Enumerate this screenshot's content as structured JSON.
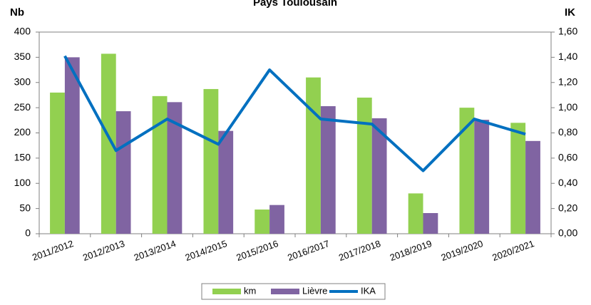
{
  "chart_data": {
    "type": "bar",
    "title": "Pays Toulousain",
    "ylabel": "Nb",
    "y2label": "IK",
    "categories": [
      "2011/2012",
      "2012/2013",
      "2013/2014",
      "2014/2015",
      "2015/2016",
      "2016/2017",
      "2017/2018",
      "2018/2019",
      "2019/2020",
      "2020/2021"
    ],
    "series": [
      {
        "name": "km",
        "color": "#92d050",
        "values": [
          280,
          357,
          273,
          287,
          48,
          310,
          270,
          80,
          250,
          220
        ]
      },
      {
        "name": "Lièvre",
        "color": "#8064a2",
        "values": [
          350,
          243,
          261,
          204,
          57,
          253,
          229,
          41,
          226,
          184
        ]
      },
      {
        "name": "IKA",
        "color": "#0070c0",
        "type": "line",
        "axis": "y2",
        "values": [
          1.41,
          0.66,
          0.91,
          0.71,
          1.3,
          0.91,
          0.87,
          0.5,
          0.91,
          0.79
        ]
      }
    ],
    "ylim": [
      0,
      400
    ],
    "yticks": [
      0,
      50,
      100,
      150,
      200,
      250,
      300,
      350,
      400
    ],
    "y2lim": [
      0,
      1.6
    ],
    "y2ticks": [
      {
        "value": 0,
        "label": "0,00"
      },
      {
        "value": 0.2,
        "label": "0,20"
      },
      {
        "value": 0.4,
        "label": "0,40"
      },
      {
        "value": 0.6,
        "label": "0,60"
      },
      {
        "value": 0.8,
        "label": "0,80"
      },
      {
        "value": 1.0,
        "label": "1,00"
      },
      {
        "value": 1.2,
        "label": "1,20"
      },
      {
        "value": 1.4,
        "label": "1,40"
      },
      {
        "value": 1.6,
        "label": "1,60"
      }
    ],
    "legend": "bottom"
  }
}
